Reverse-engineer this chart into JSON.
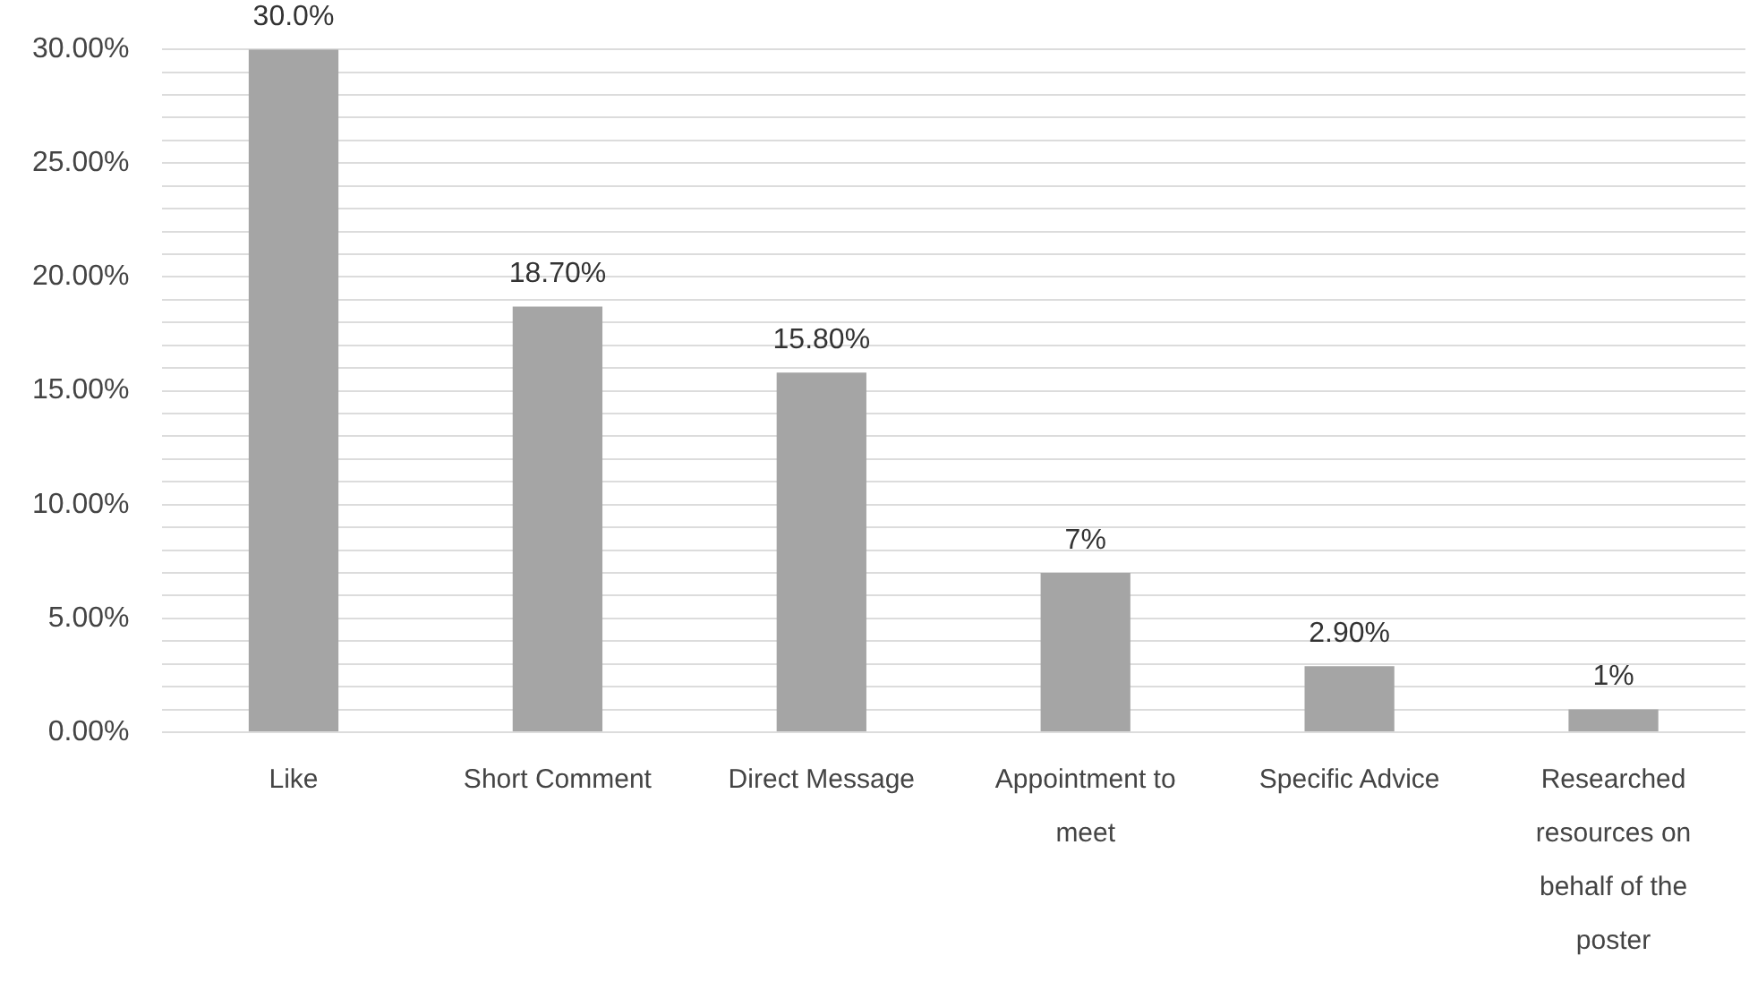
{
  "chart_data": {
    "type": "bar",
    "categories": [
      "Like",
      "Short Comment",
      "Direct Message",
      "Appointment to meet",
      "Specific Advice",
      "Researched resources on behalf of the poster"
    ],
    "values": [
      30,
      18.7,
      15.8,
      7,
      2.9,
      1
    ],
    "value_labels": [
      "30.0%",
      "18.70%",
      "15.80%",
      "7%",
      "2.90%",
      "1%"
    ],
    "color": "#a5a5a5",
    "ylim": [
      0,
      30
    ],
    "yticks": [
      {
        "value": 0,
        "label": "0.00%"
      },
      {
        "value": 1,
        "label": null
      },
      {
        "value": 2,
        "label": null
      },
      {
        "value": 3,
        "label": null
      },
      {
        "value": 4,
        "label": null
      },
      {
        "value": 5,
        "label": "5.00%"
      },
      {
        "value": 6,
        "label": null
      },
      {
        "value": 7,
        "label": null
      },
      {
        "value": 8,
        "label": null
      },
      {
        "value": 9,
        "label": null
      },
      {
        "value": 10,
        "label": "10.00%"
      },
      {
        "value": 11,
        "label": null
      },
      {
        "value": 12,
        "label": null
      },
      {
        "value": 13,
        "label": null
      },
      {
        "value": 14,
        "label": null
      },
      {
        "value": 15,
        "label": "15.00%"
      },
      {
        "value": 16,
        "label": null
      },
      {
        "value": 17,
        "label": null
      },
      {
        "value": 18,
        "label": null
      },
      {
        "value": 19,
        "label": null
      },
      {
        "value": 20,
        "label": "20.00%"
      },
      {
        "value": 21,
        "label": null
      },
      {
        "value": 22,
        "label": null
      },
      {
        "value": 23,
        "label": null
      },
      {
        "value": 24,
        "label": null
      },
      {
        "value": 25,
        "label": "25.00%"
      },
      {
        "value": 26,
        "label": null
      },
      {
        "value": 27,
        "label": null
      },
      {
        "value": 28,
        "label": null
      },
      {
        "value": 29,
        "label": null
      },
      {
        "value": 30,
        "label": "30.00%"
      }
    ],
    "grid": "y",
    "legend": false
  }
}
